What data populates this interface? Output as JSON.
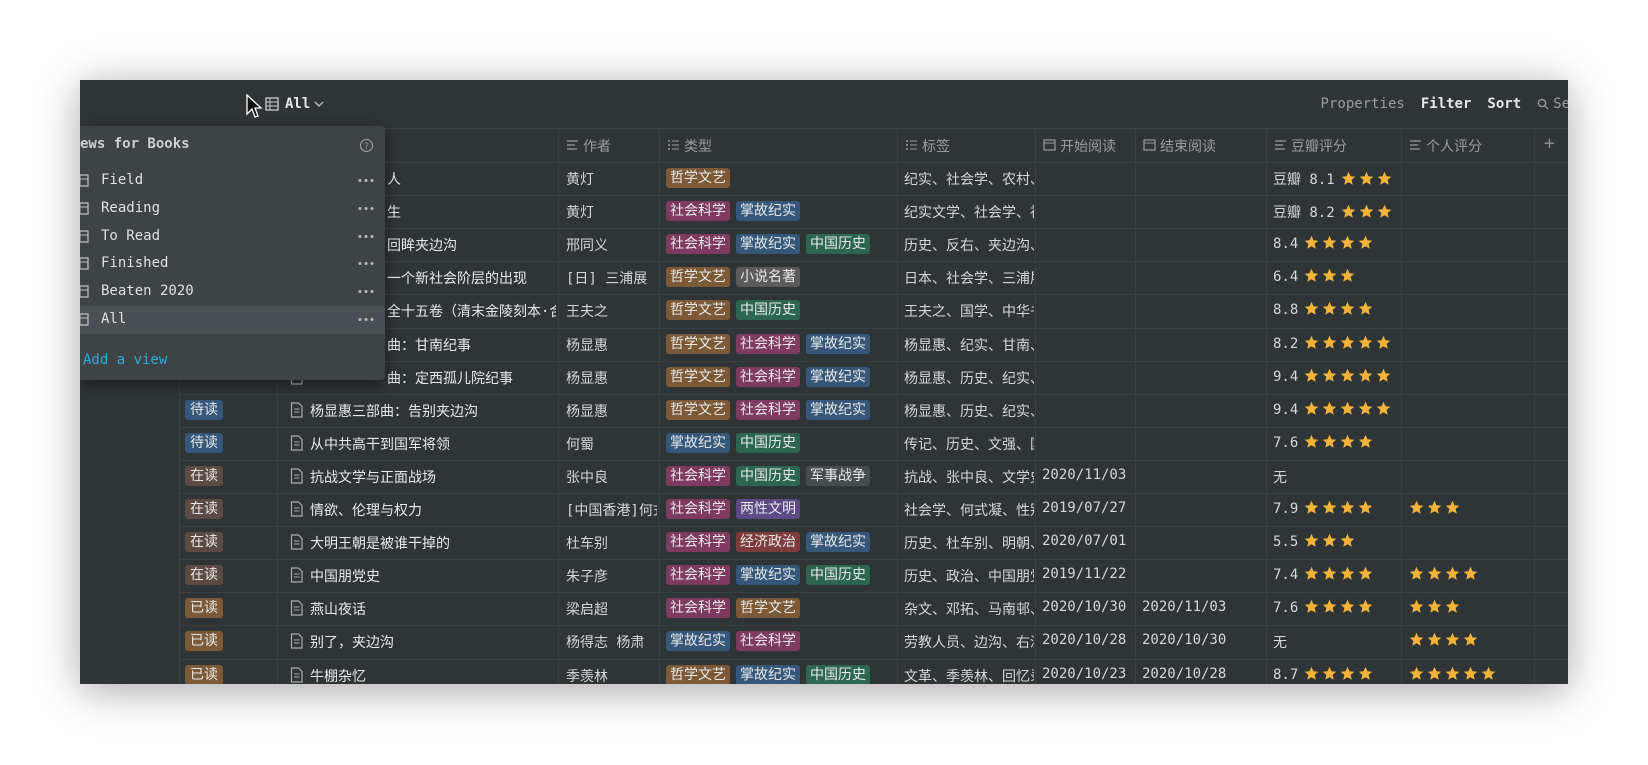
{
  "toolbar": {
    "view": "All",
    "actions": [
      "Properties",
      "Filter",
      "Sort"
    ],
    "search": "Se"
  },
  "table": {
    "headers": [
      "作者",
      "类型",
      "标签",
      "开始阅读",
      "结束阅读",
      "豆瓣评分",
      "个人评分"
    ],
    "add_column": "+",
    "rows": [
      {
        "status": null,
        "title": "人",
        "author": "黄灯",
        "types": [
          "哲学文艺"
        ],
        "labels": "纪实、社会学、农村、",
        "start": null,
        "end": null,
        "douban": "豆瓣 8.1",
        "douban_stars": 3,
        "personal_stars": null
      },
      {
        "status": null,
        "title": "生",
        "author": "黄灯",
        "types": [
          "社会科学",
          "掌故纪实"
        ],
        "labels": "纪实文学、社会学、社",
        "start": null,
        "end": null,
        "douban": "豆瓣 8.2",
        "douban_stars": 3,
        "personal_stars": null
      },
      {
        "status": null,
        "title": "回眸夹边沟",
        "author": "邢同义",
        "types": [
          "社会科学",
          "掌故纪实",
          "中国历史"
        ],
        "labels": "历史、反右、夹边沟、",
        "start": null,
        "end": null,
        "douban": "8.4",
        "douban_stars": 4,
        "personal_stars": null
      },
      {
        "status": null,
        "title": "一个新社会阶层的出现",
        "author": "[日] 三浦展",
        "types": [
          "哲学文艺",
          "小说名著"
        ],
        "labels": "日本、社会学、三浦展",
        "start": null,
        "end": null,
        "douban": "6.4",
        "douban_stars": 3,
        "personal_stars": null
      },
      {
        "status": null,
        "title": "全十五卷（清末金陵刻本·合",
        "author": "王夫之",
        "types": [
          "哲学文艺",
          "中国历史"
        ],
        "labels": "王夫之、国学、中华书",
        "start": null,
        "end": null,
        "douban": "8.8",
        "douban_stars": 4,
        "personal_stars": null
      },
      {
        "status": null,
        "title": "曲：甘南纪事",
        "author": "杨显惠",
        "types": [
          "哲学文艺",
          "社会科学",
          "掌故纪实"
        ],
        "labels": "杨显惠、纪实、甘南、",
        "start": null,
        "end": null,
        "douban": "8.2",
        "douban_stars": 5,
        "personal_stars": null
      },
      {
        "status": null,
        "title": "曲：定西孤儿院纪事",
        "author": "杨显惠",
        "types": [
          "哲学文艺",
          "社会科学",
          "掌故纪实"
        ],
        "labels": "杨显惠、历史、纪实、",
        "start": null,
        "end": null,
        "douban": "9.4",
        "douban_stars": 5,
        "personal_stars": null
      },
      {
        "status": "待读",
        "title": "杨显惠三部曲：告别夹边沟",
        "author": "杨显惠",
        "types": [
          "哲学文艺",
          "社会科学",
          "掌故纪实"
        ],
        "labels": "杨显惠、历史、纪实、",
        "start": null,
        "end": null,
        "douban": "9.4",
        "douban_stars": 5,
        "personal_stars": null
      },
      {
        "status": "待读",
        "title": "从中共高干到国军将领",
        "author": "何蜀",
        "types": [
          "掌故纪实",
          "中国历史"
        ],
        "labels": "传记、历史、文强、国",
        "start": null,
        "end": null,
        "douban": "7.6",
        "douban_stars": 4,
        "personal_stars": null
      },
      {
        "status": "在读",
        "title": "抗战文学与正面战场",
        "author": "张中良",
        "types": [
          "社会科学",
          "中国历史",
          "军事战争"
        ],
        "labels": "抗战、张中良、文学史",
        "start": "2020/11/03",
        "end": null,
        "douban": "无",
        "douban_stars": null,
        "personal_stars": null
      },
      {
        "status": "在读",
        "title": "情欲、伦理与权力",
        "author": "[中国香港]何式凝",
        "types": [
          "社会科学",
          "两性文明"
        ],
        "labels": "社会学、何式凝、性别",
        "start": "2019/07/27",
        "end": null,
        "douban": "7.9",
        "douban_stars": 4,
        "personal_stars": 3
      },
      {
        "status": "在读",
        "title": "大明王朝是被谁干掉的",
        "author": "杜车别",
        "types": [
          "社会科学",
          "经济政治",
          "掌故纪实"
        ],
        "labels": "历史、杜车别、明朝、",
        "start": "2020/07/01",
        "end": null,
        "douban": "5.5",
        "douban_stars": 3,
        "personal_stars": null
      },
      {
        "status": "在读",
        "title": "中国朋党史",
        "author": "朱子彦",
        "types": [
          "社会科学",
          "掌故纪实",
          "中国历史"
        ],
        "labels": "历史、政治、中国朋党",
        "start": "2019/11/22",
        "end": null,
        "douban": "7.4",
        "douban_stars": 4,
        "personal_stars": 4
      },
      {
        "status": "已读",
        "title": "燕山夜话",
        "author": "梁启超",
        "types": [
          "社会科学",
          "哲学文艺"
        ],
        "labels": "杂文、邓拓、马南邨、",
        "start": "2020/10/30",
        "end": "2020/11/03",
        "douban": "7.6",
        "douban_stars": 4,
        "personal_stars": 3
      },
      {
        "status": "已读",
        "title": "别了，夹边沟",
        "author": "杨得志 杨肃",
        "types": [
          "掌故纪实",
          "社会科学"
        ],
        "labels": "劳教人员、边沟、右派",
        "start": "2020/10/28",
        "end": "2020/10/30",
        "douban": "无",
        "douban_stars": null,
        "personal_stars": 4
      },
      {
        "status": "已读",
        "title": "牛棚杂忆",
        "author": "季羡林",
        "types": [
          "哲学文艺",
          "掌故纪实",
          "中国历史"
        ],
        "labels": "文革、季羡林、回忆录",
        "start": "2020/10/23",
        "end": "2020/10/28",
        "douban": "8.7",
        "douban_stars": 4,
        "personal_stars": 5
      }
    ]
  },
  "tag_colors": {
    "哲学文艺": "#7d5a37",
    "社会科学": "#7e3a5f",
    "掌故纪实": "#35587a",
    "中国历史": "#2c6650",
    "小说名著": "#5b5b5b",
    "军事战争": "#474c4f",
    "两性文明": "#5b4a86",
    "经济政治": "#7e3b3b"
  },
  "status_colors": {
    "待读": "#35587a",
    "在读": "#5c4b45",
    "已读": "#7d5a37"
  },
  "views_menu": {
    "title": "ews for Books",
    "items": [
      "Field",
      "Reading",
      "To Read",
      "Finished",
      "Beaten 2020",
      "All"
    ],
    "active": 5,
    "add": "Add a view"
  }
}
